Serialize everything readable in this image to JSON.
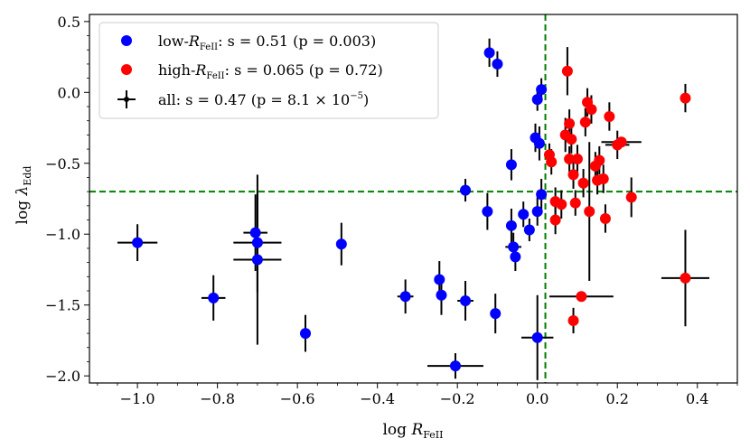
{
  "chart_data": {
    "type": "scatter",
    "xlabel": "log R_FeII",
    "ylabel": "log λ_Edd",
    "xlim": [
      -1.12,
      0.5
    ],
    "ylim": [
      -2.05,
      0.55
    ],
    "x_ticks": [
      -1.0,
      -0.8,
      -0.6,
      -0.4,
      -0.2,
      0.0,
      0.2,
      0.4
    ],
    "x_tick_labels": [
      "−1.0",
      "−0.8",
      "−0.6",
      "−0.4",
      "−0.2",
      "0.0",
      "0.2",
      "0.4"
    ],
    "y_ticks": [
      0.5,
      0.0,
      -0.5,
      -1.0,
      -1.5,
      -2.0
    ],
    "y_tick_labels": [
      "0.5",
      "0.0",
      "−0.5",
      "−1.0",
      "−1.5",
      "−2.0"
    ],
    "reference_lines": {
      "x": 0.02,
      "y": -0.7,
      "color": "#008000",
      "style": "dashed"
    },
    "colors": {
      "low": "#0000ff",
      "high": "#ff0000",
      "errorbar": "#000000"
    },
    "legend": [
      {
        "key": "low",
        "label_prefix": "low-",
        "label_stat": ":  s = 0.51 (p = 0.003)"
      },
      {
        "key": "high",
        "label_prefix": "high-",
        "label_stat": ":  s = 0.065 (p = 0.72)"
      },
      {
        "key": "all",
        "label_prefix": "all:  s = 0.47 (p = 8.1 × 10",
        "label_stat": ")"
      }
    ],
    "series": [
      {
        "name": "low",
        "points": [
          {
            "x": -1.0,
            "y": -1.06,
            "xerr": 0.05,
            "yerr": 0.13
          },
          {
            "x": -0.81,
            "y": -1.45,
            "xerr": 0.03,
            "yerr": 0.16
          },
          {
            "x": -0.705,
            "y": -0.99,
            "xerr": 0.03,
            "yerr": 0.27
          },
          {
            "x": -0.7,
            "y": -1.06,
            "xerr": 0.06,
            "yerr": 0.35
          },
          {
            "x": -0.7,
            "y": -1.18,
            "xerr": 0.06,
            "yerr": 0.6
          },
          {
            "x": -0.58,
            "y": -1.7,
            "xerr": 0.0,
            "yerr": 0.13
          },
          {
            "x": -0.49,
            "y": -1.07,
            "xerr": 0.0,
            "yerr": 0.15
          },
          {
            "x": -0.33,
            "y": -1.44,
            "xerr": 0.02,
            "yerr": 0.12
          },
          {
            "x": -0.245,
            "y": -1.32,
            "xerr": 0.01,
            "yerr": 0.13
          },
          {
            "x": -0.24,
            "y": -1.43,
            "xerr": 0.01,
            "yerr": 0.14
          },
          {
            "x": -0.205,
            "y": -1.93,
            "xerr": 0.07,
            "yerr": 0.09
          },
          {
            "x": -0.18,
            "y": -0.69,
            "xerr": 0.0,
            "yerr": 0.08
          },
          {
            "x": -0.18,
            "y": -1.47,
            "xerr": 0.02,
            "yerr": 0.14
          },
          {
            "x": -0.125,
            "y": -0.84,
            "xerr": 0.0,
            "yerr": 0.13
          },
          {
            "x": -0.12,
            "y": 0.28,
            "xerr": 0.0,
            "yerr": 0.1
          },
          {
            "x": -0.1,
            "y": 0.2,
            "xerr": 0.0,
            "yerr": 0.09
          },
          {
            "x": -0.105,
            "y": -1.56,
            "xerr": 0.0,
            "yerr": 0.14
          },
          {
            "x": -0.065,
            "y": -0.51,
            "xerr": 0.0,
            "yerr": 0.11
          },
          {
            "x": -0.065,
            "y": -0.94,
            "xerr": 0.0,
            "yerr": 0.12
          },
          {
            "x": -0.06,
            "y": -1.09,
            "xerr": 0.02,
            "yerr": 0.1
          },
          {
            "x": -0.055,
            "y": -1.16,
            "xerr": 0.0,
            "yerr": 0.1
          },
          {
            "x": -0.035,
            "y": -0.86,
            "xerr": 0.01,
            "yerr": 0.09
          },
          {
            "x": -0.02,
            "y": -0.97,
            "xerr": 0.0,
            "yerr": 0.08
          },
          {
            "x": -0.005,
            "y": -0.32,
            "xerr": 0.0,
            "yerr": 0.1
          },
          {
            "x": 0.0,
            "y": -0.05,
            "xerr": 0.01,
            "yerr": 0.08
          },
          {
            "x": 0.0,
            "y": -0.84,
            "xerr": 0.0,
            "yerr": 0.1
          },
          {
            "x": 0.005,
            "y": -0.36,
            "xerr": 0.01,
            "yerr": 0.12
          },
          {
            "x": 0.01,
            "y": -0.72,
            "xerr": 0.01,
            "yerr": 0.11
          },
          {
            "x": 0.01,
            "y": 0.02,
            "xerr": 0.01,
            "yerr": 0.08
          },
          {
            "x": 0.0,
            "y": -1.73,
            "xerr": 0.04,
            "yerr": 0.3
          }
        ]
      },
      {
        "name": "high",
        "points": [
          {
            "x": 0.03,
            "y": -0.44,
            "xerr": 0.01,
            "yerr": 0.08
          },
          {
            "x": 0.035,
            "y": -0.49,
            "xerr": 0.01,
            "yerr": 0.09
          },
          {
            "x": 0.045,
            "y": -0.77,
            "xerr": 0.01,
            "yerr": 0.1
          },
          {
            "x": 0.045,
            "y": -0.9,
            "xerr": 0.01,
            "yerr": 0.1
          },
          {
            "x": 0.06,
            "y": -0.79,
            "xerr": 0.01,
            "yerr": 0.1
          },
          {
            "x": 0.07,
            "y": -0.3,
            "xerr": 0.01,
            "yerr": 0.12
          },
          {
            "x": 0.075,
            "y": 0.15,
            "xerr": 0.0,
            "yerr": 0.17
          },
          {
            "x": 0.08,
            "y": -0.22,
            "xerr": 0.01,
            "yerr": 0.1
          },
          {
            "x": 0.08,
            "y": -0.47,
            "xerr": 0.01,
            "yerr": 0.09
          },
          {
            "x": 0.085,
            "y": -0.33,
            "xerr": 0.01,
            "yerr": 0.1
          },
          {
            "x": 0.09,
            "y": -0.58,
            "xerr": 0.01,
            "yerr": 0.1
          },
          {
            "x": 0.09,
            "y": -1.61,
            "xerr": 0.0,
            "yerr": 0.09
          },
          {
            "x": 0.095,
            "y": -0.78,
            "xerr": 0.01,
            "yerr": 0.09
          },
          {
            "x": 0.1,
            "y": -0.47,
            "xerr": 0.01,
            "yerr": 0.1
          },
          {
            "x": 0.11,
            "y": -1.44,
            "xerr": 0.08,
            "yerr": 0.0
          },
          {
            "x": 0.115,
            "y": -0.64,
            "xerr": 0.01,
            "yerr": 0.1
          },
          {
            "x": 0.12,
            "y": -0.21,
            "xerr": 0.01,
            "yerr": 0.1
          },
          {
            "x": 0.125,
            "y": -0.07,
            "xerr": 0.01,
            "yerr": 0.1
          },
          {
            "x": 0.13,
            "y": -0.84,
            "xerr": 0.0,
            "yerr": 0.49
          },
          {
            "x": 0.135,
            "y": -0.12,
            "xerr": 0.01,
            "yerr": 0.1
          },
          {
            "x": 0.145,
            "y": -0.52,
            "xerr": 0.01,
            "yerr": 0.1
          },
          {
            "x": 0.15,
            "y": -0.62,
            "xerr": 0.01,
            "yerr": 0.1
          },
          {
            "x": 0.155,
            "y": -0.48,
            "xerr": 0.01,
            "yerr": 0.1
          },
          {
            "x": 0.165,
            "y": -0.61,
            "xerr": 0.01,
            "yerr": 0.1
          },
          {
            "x": 0.17,
            "y": -0.89,
            "xerr": 0.0,
            "yerr": 0.1
          },
          {
            "x": 0.18,
            "y": -0.17,
            "xerr": 0.01,
            "yerr": 0.1
          },
          {
            "x": 0.2,
            "y": -0.37,
            "xerr": 0.03,
            "yerr": 0.1
          },
          {
            "x": 0.21,
            "y": -0.35,
            "xerr": 0.05,
            "yerr": 0.0
          },
          {
            "x": 0.235,
            "y": -0.74,
            "xerr": 0.0,
            "yerr": 0.14
          },
          {
            "x": 0.37,
            "y": -0.04,
            "xerr": 0.0,
            "yerr": 0.1
          },
          {
            "x": 0.37,
            "y": -1.31,
            "xerr": 0.06,
            "yerr": 0.34
          }
        ]
      }
    ]
  }
}
